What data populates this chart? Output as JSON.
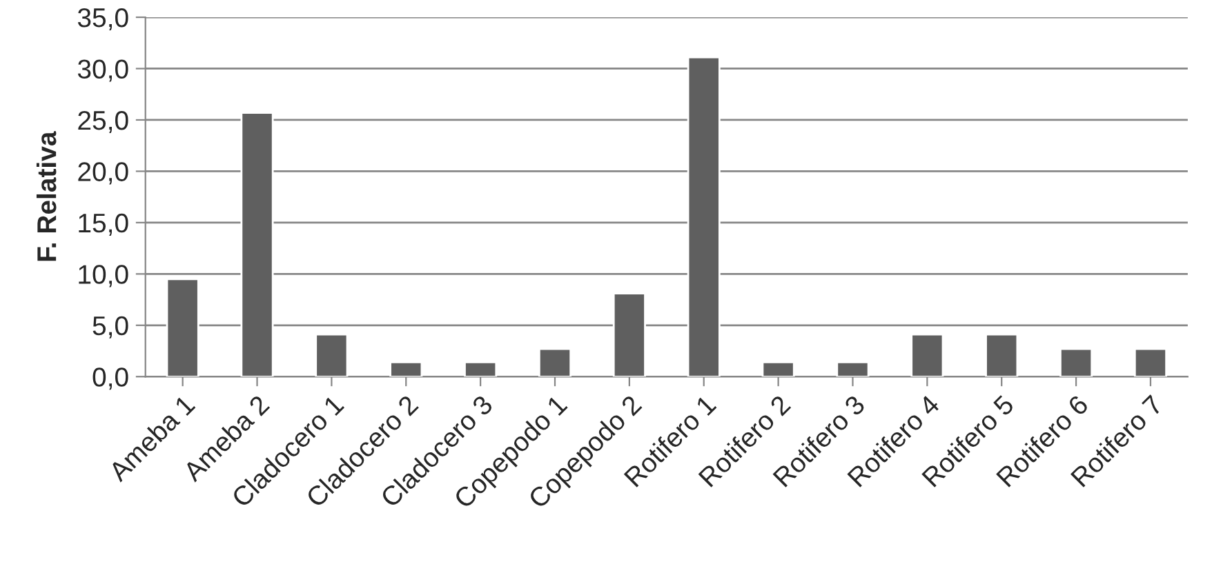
{
  "chart_data": {
    "type": "bar",
    "ylabel": "F. Relativa",
    "categories": [
      "Ameba 1",
      "Ameba 2",
      "Cladocero 1",
      "Cladocero 2",
      "Cladocero 3",
      "Copepodo 1",
      "Copepodo 2",
      "Rotifero 1",
      "Rotifero 2",
      "Rotifero 3",
      "Rotifero 4",
      "Rotifero 5",
      "Rotifero 6",
      "Rotifero 7"
    ],
    "values": [
      9.5,
      25.7,
      4.1,
      1.4,
      1.4,
      2.7,
      8.1,
      31.1,
      1.4,
      1.4,
      4.1,
      4.1,
      2.7,
      2.7
    ],
    "color": "#5f5f5f",
    "ylim": [
      0,
      35
    ],
    "yticks": [
      {
        "value": 0,
        "label": "0,0"
      },
      {
        "value": 5,
        "label": "5,0"
      },
      {
        "value": 10,
        "label": "10,0"
      },
      {
        "value": 15,
        "label": "15,0"
      },
      {
        "value": 20,
        "label": "20,0"
      },
      {
        "value": 25,
        "label": "25,0"
      },
      {
        "value": 30,
        "label": "30,0"
      },
      {
        "value": 35,
        "label": "35,0"
      }
    ],
    "grid": "y",
    "legend": false
  }
}
